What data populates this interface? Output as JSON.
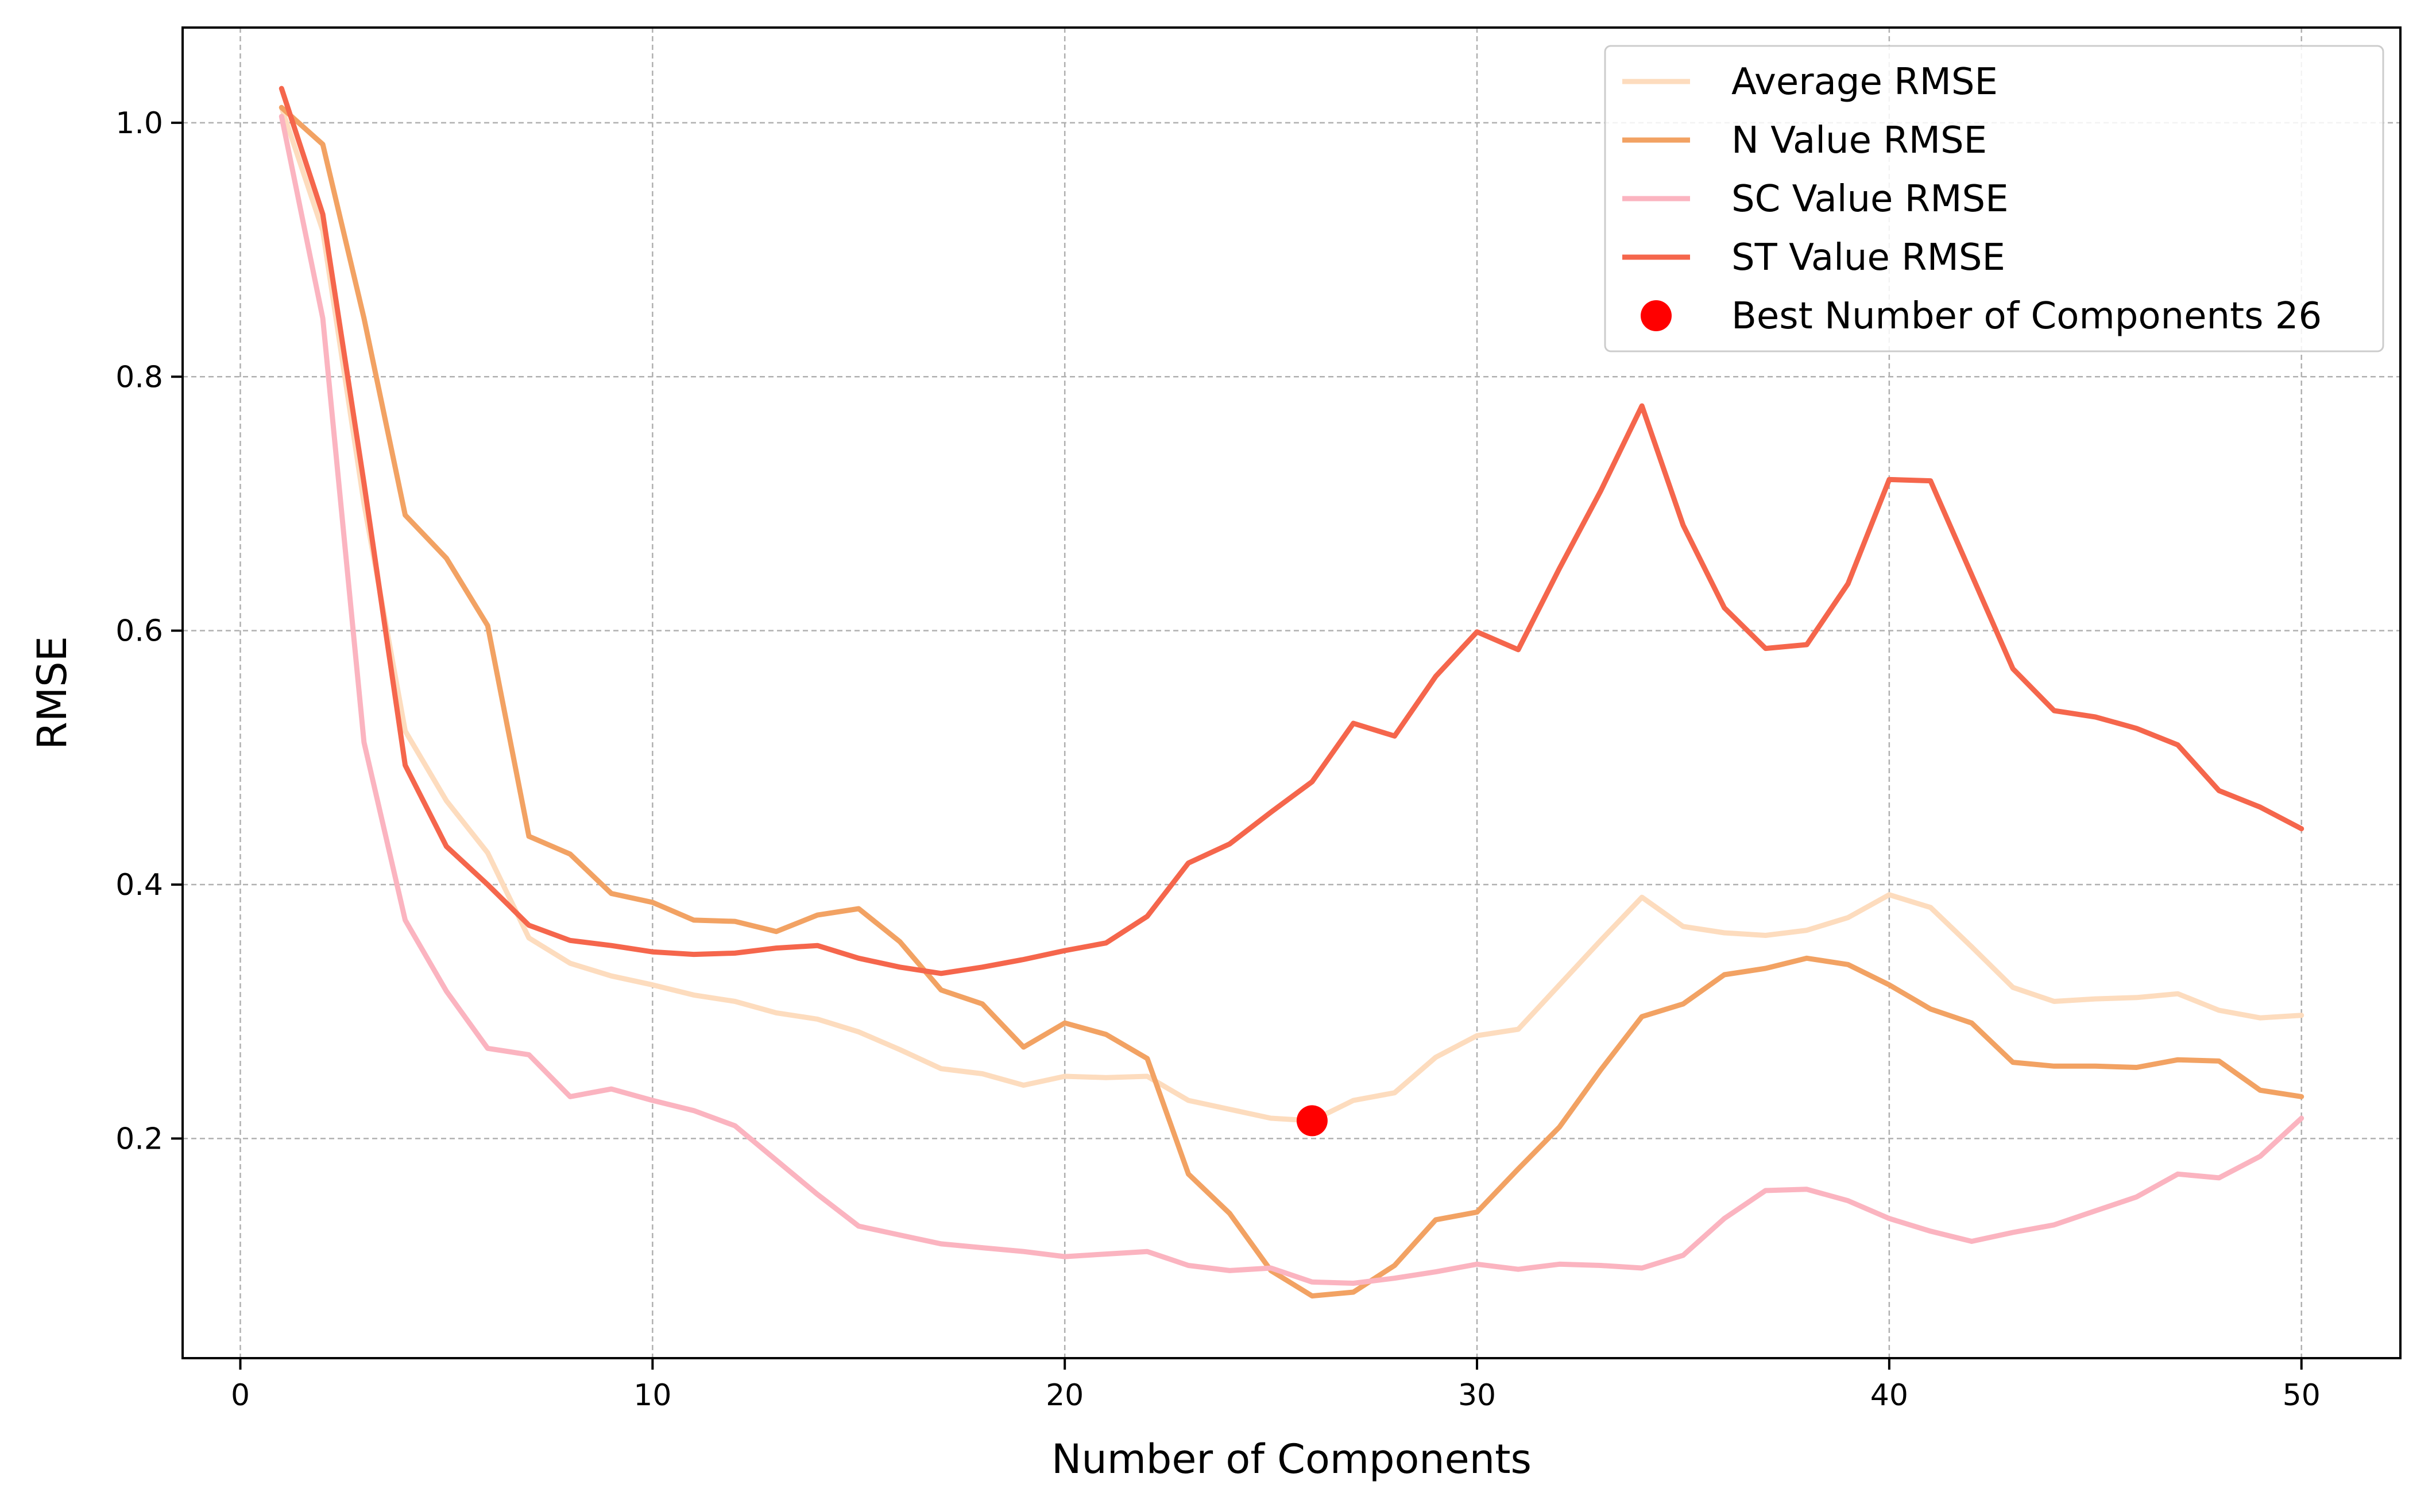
{
  "chart_data": {
    "type": "line",
    "title": "",
    "xlabel": "Number of Components",
    "ylabel": "RMSE",
    "xlim": [
      -1.4,
      52.4
    ],
    "ylim": [
      0.027,
      1.075
    ],
    "xticks": [
      0,
      10,
      20,
      30,
      40,
      50
    ],
    "yticks": [
      0.2,
      0.4,
      0.6,
      0.8,
      1.0
    ],
    "grid": true,
    "legend_position": "top-right",
    "x": [
      1,
      2,
      3,
      4,
      5,
      6,
      7,
      8,
      9,
      10,
      11,
      12,
      13,
      14,
      15,
      16,
      17,
      18,
      19,
      20,
      21,
      22,
      23,
      24,
      25,
      26,
      27,
      28,
      29,
      30,
      31,
      32,
      33,
      34,
      35,
      36,
      37,
      38,
      39,
      40,
      41,
      42,
      43,
      44,
      45,
      46,
      47,
      48,
      49,
      50
    ],
    "series": [
      {
        "name": "Average RMSE",
        "color": "#FDDCBE",
        "values": [
          1.012,
          0.915,
          0.7,
          0.521,
          0.466,
          0.425,
          0.358,
          0.338,
          0.328,
          0.321,
          0.313,
          0.308,
          0.299,
          0.294,
          0.284,
          0.27,
          0.255,
          0.251,
          0.242,
          0.249,
          0.248,
          0.249,
          0.23,
          0.223,
          0.216,
          0.214,
          0.23,
          0.236,
          0.264,
          0.281,
          0.286,
          0.321,
          0.356,
          0.39,
          0.367,
          0.362,
          0.36,
          0.364,
          0.374,
          0.392,
          0.382,
          0.351,
          0.319,
          0.308,
          0.31,
          0.311,
          0.314,
          0.301,
          0.295,
          0.297
        ]
      },
      {
        "name": "N Value RMSE",
        "color": "#F2A263",
        "values": [
          1.012,
          0.983,
          0.846,
          0.691,
          0.657,
          0.604,
          0.438,
          0.424,
          0.393,
          0.386,
          0.372,
          0.371,
          0.363,
          0.376,
          0.381,
          0.355,
          0.317,
          0.306,
          0.272,
          0.291,
          0.282,
          0.263,
          0.172,
          0.141,
          0.096,
          0.076,
          0.079,
          0.1,
          0.136,
          0.142,
          0.176,
          0.209,
          0.254,
          0.296,
          0.306,
          0.329,
          0.334,
          0.342,
          0.337,
          0.321,
          0.302,
          0.291,
          0.26,
          0.257,
          0.257,
          0.256,
          0.262,
          0.261,
          0.238,
          0.233
        ]
      },
      {
        "name": "SC Value RMSE",
        "color": "#FBB4C0",
        "values": [
          1.005,
          0.846,
          0.512,
          0.372,
          0.316,
          0.271,
          0.266,
          0.233,
          0.239,
          0.23,
          0.222,
          0.21,
          0.183,
          0.156,
          0.131,
          0.124,
          0.117,
          0.114,
          0.111,
          0.107,
          0.109,
          0.111,
          0.1,
          0.096,
          0.098,
          0.087,
          0.086,
          0.09,
          0.095,
          0.101,
          0.097,
          0.101,
          0.1,
          0.098,
          0.108,
          0.137,
          0.159,
          0.16,
          0.151,
          0.137,
          0.127,
          0.119,
          0.126,
          0.132,
          0.143,
          0.154,
          0.172,
          0.169,
          0.186,
          0.216
        ]
      },
      {
        "name": "ST Value RMSE",
        "color": "#F5664C",
        "values": [
          1.027,
          0.928,
          0.716,
          0.494,
          0.43,
          0.4,
          0.368,
          0.356,
          0.352,
          0.347,
          0.345,
          0.346,
          0.35,
          0.352,
          0.342,
          0.335,
          0.33,
          0.335,
          0.341,
          0.348,
          0.354,
          0.375,
          0.417,
          0.432,
          0.457,
          0.481,
          0.527,
          0.517,
          0.564,
          0.599,
          0.585,
          0.649,
          0.71,
          0.777,
          0.683,
          0.618,
          0.586,
          0.589,
          0.637,
          0.719,
          0.718,
          0.644,
          0.57,
          0.537,
          0.532,
          0.523,
          0.51,
          0.474,
          0.461,
          0.444
        ]
      }
    ],
    "points": [
      {
        "name": "Best Number of Components 26",
        "color": "#FF0000",
        "x": 26,
        "y": 0.214
      }
    ]
  }
}
